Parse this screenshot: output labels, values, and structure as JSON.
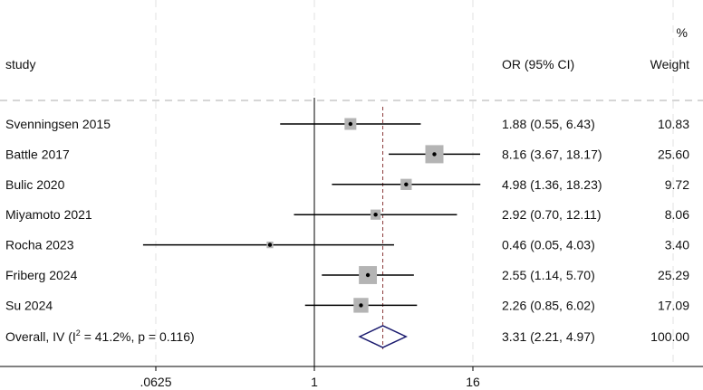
{
  "chart_data": {
    "type": "forest",
    "scale": "log2",
    "header": {
      "study": "study",
      "or_ci": "OR (95% CI)",
      "percent": "%",
      "weight": "Weight"
    },
    "studies": [
      {
        "name": "Svenningsen 2015",
        "or": 1.88,
        "lo": 0.55,
        "hi": 6.43,
        "weight": 10.83,
        "or_ci_text": "1.88 (0.55, 6.43)",
        "weight_text": "10.83"
      },
      {
        "name": "Battle 2017",
        "or": 8.16,
        "lo": 3.67,
        "hi": 18.17,
        "weight": 25.6,
        "or_ci_text": "8.16 (3.67, 18.17)",
        "weight_text": "25.60"
      },
      {
        "name": "Bulic 2020",
        "or": 4.98,
        "lo": 1.36,
        "hi": 18.23,
        "weight": 9.72,
        "or_ci_text": "4.98 (1.36, 18.23)",
        "weight_text": "9.72"
      },
      {
        "name": "Miyamoto 2021",
        "or": 2.92,
        "lo": 0.7,
        "hi": 12.11,
        "weight": 8.06,
        "or_ci_text": "2.92 (0.70, 12.11)",
        "weight_text": "8.06"
      },
      {
        "name": "Rocha 2023",
        "or": 0.46,
        "lo": 0.05,
        "hi": 4.03,
        "weight": 3.4,
        "or_ci_text": "0.46 (0.05, 4.03)",
        "weight_text": "3.40"
      },
      {
        "name": "Friberg 2024",
        "or": 2.55,
        "lo": 1.14,
        "hi": 5.7,
        "weight": 25.29,
        "or_ci_text": "2.55 (1.14, 5.70)",
        "weight_text": "25.29"
      },
      {
        "name": "Su 2024",
        "or": 2.26,
        "lo": 0.85,
        "hi": 6.02,
        "weight": 17.09,
        "or_ci_text": "2.26 (0.85, 6.02)",
        "weight_text": "17.09"
      }
    ],
    "overall": {
      "label_main": "Overall, IV (I",
      "label_sup": "2",
      "label_rest": " = 41.2%, p = 0.116)",
      "or": 3.31,
      "lo": 2.21,
      "hi": 4.97,
      "or_ci_text": "3.31 (2.21, 4.97)",
      "weight_text": "100.00"
    },
    "x_ticks": [
      {
        "value": 0.0625,
        "label": ".0625"
      },
      {
        "value": 1,
        "label": "1"
      },
      {
        "value": 16,
        "label": "16"
      }
    ],
    "null_line": 1,
    "colors": {
      "box": "#b4b4b4",
      "line": "#000000",
      "diamond": "#1a1a6e",
      "overall_line": "#8b3a3a",
      "grid": "#e2e2e2",
      "separator": "#c8c8c8"
    }
  }
}
